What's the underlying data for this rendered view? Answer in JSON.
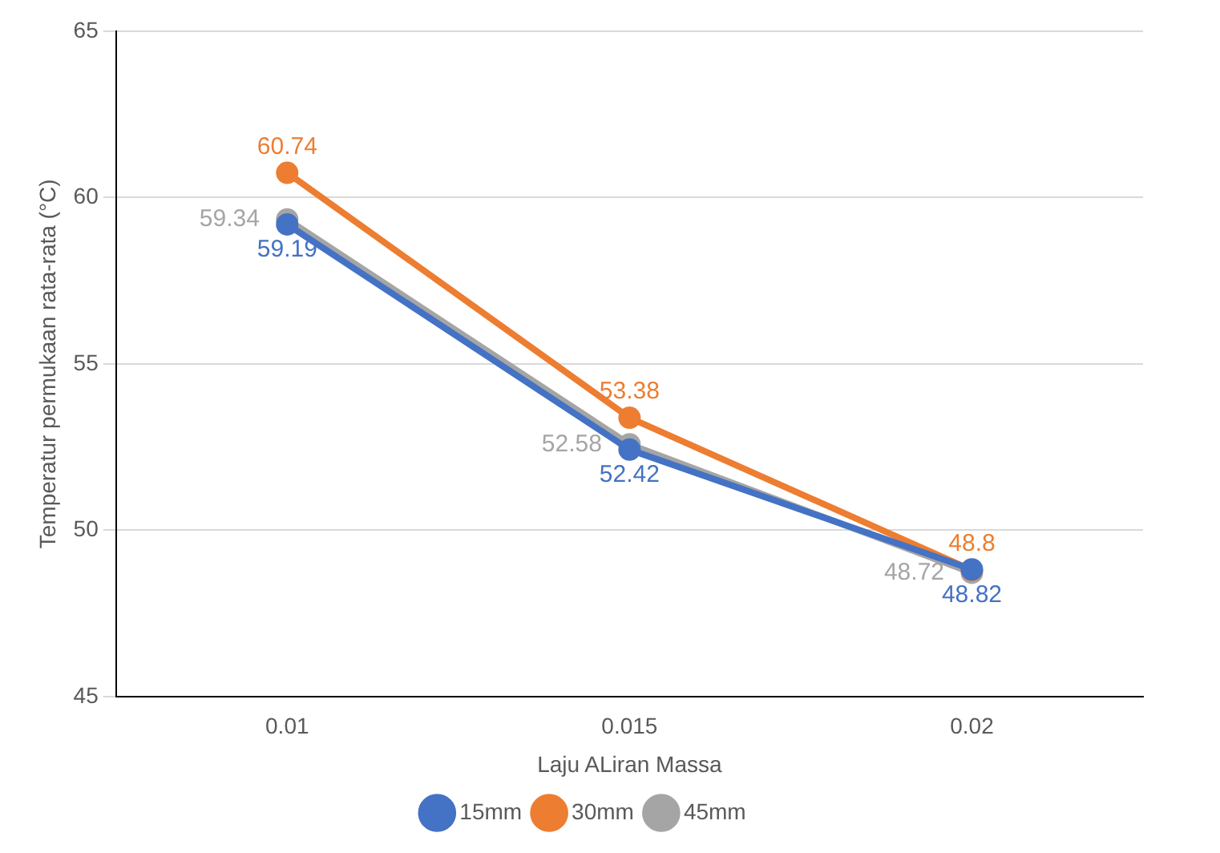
{
  "chart_data": {
    "type": "line",
    "xlabel": "Laju ALiran Massa",
    "ylabel": "Temperatur permukaan rata-rata (°C)",
    "categories": [
      "0.01",
      "0.015",
      "0.02"
    ],
    "series": [
      {
        "name": "15mm",
        "color": "#4472c4",
        "values": [
          59.19,
          52.42,
          48.82
        ]
      },
      {
        "name": "30mm",
        "color": "#ed7d31",
        "values": [
          60.74,
          53.38,
          48.8
        ]
      },
      {
        "name": "45mm",
        "color": "#a5a5a5",
        "values": [
          59.34,
          52.58,
          48.72
        ]
      }
    ],
    "ylim": [
      45,
      65
    ],
    "yticks": [
      45,
      50,
      55,
      60,
      65
    ],
    "grid": "y",
    "legend": "bottom",
    "marker": "circle",
    "line_style": "solid",
    "data_labels": true
  }
}
